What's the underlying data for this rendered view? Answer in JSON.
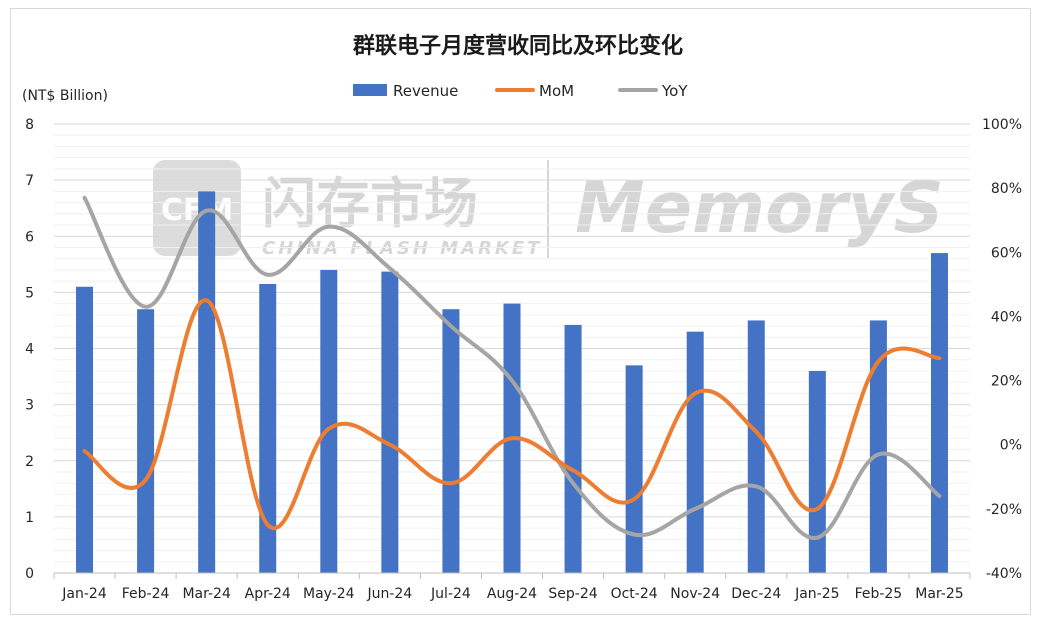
{
  "chart_data": {
    "type": "bar+line",
    "title": "群联电子月度营收同比及环比变化",
    "left_axis_unit": "(NT$ Billion)",
    "categories": [
      "Jan-24",
      "Feb-24",
      "Mar-24",
      "Apr-24",
      "May-24",
      "Jun-24",
      "Jul-24",
      "Aug-24",
      "Sep-24",
      "Oct-24",
      "Nov-24",
      "Dec-24",
      "Jan-25",
      "Feb-25",
      "Mar-25"
    ],
    "left_ylim": [
      0,
      8
    ],
    "left_ticks": [
      "0",
      "1",
      "2",
      "3",
      "4",
      "5",
      "6",
      "7",
      "8"
    ],
    "right_ylim": [
      -40,
      100
    ],
    "right_ticks": [
      "-40%",
      "-20%",
      "0%",
      "20%",
      "40%",
      "60%",
      "80%",
      "100%"
    ],
    "series": [
      {
        "name": "Revenue",
        "type": "bar",
        "axis": "left",
        "color": "#4472C4",
        "values": [
          5.1,
          4.7,
          6.8,
          5.15,
          5.4,
          5.37,
          4.7,
          4.8,
          4.42,
          3.7,
          4.3,
          4.5,
          3.6,
          4.5,
          5.7
        ]
      },
      {
        "name": "MoM",
        "type": "line",
        "axis": "right",
        "color": "#ED7D31",
        "values": [
          -2,
          -11,
          45,
          -25,
          5,
          0,
          -12,
          2,
          -8,
          -17,
          16,
          4,
          -20,
          26,
          27
        ]
      },
      {
        "name": "YoY",
        "type": "line",
        "axis": "right",
        "color": "#A5A5A5",
        "values": [
          77,
          43,
          73,
          53,
          68,
          55,
          37,
          20,
          -12,
          -28,
          -20,
          -13,
          -29,
          -3,
          -16
        ]
      }
    ],
    "legend": [
      "Revenue",
      "MoM",
      "YoY"
    ],
    "legend_position": "top",
    "grid": true
  },
  "watermark": {
    "logo_text": "CFM",
    "cn_text": "闪存市场",
    "en_text": "CHINA FLASH MARKET",
    "brand_text": "MemoryS"
  }
}
